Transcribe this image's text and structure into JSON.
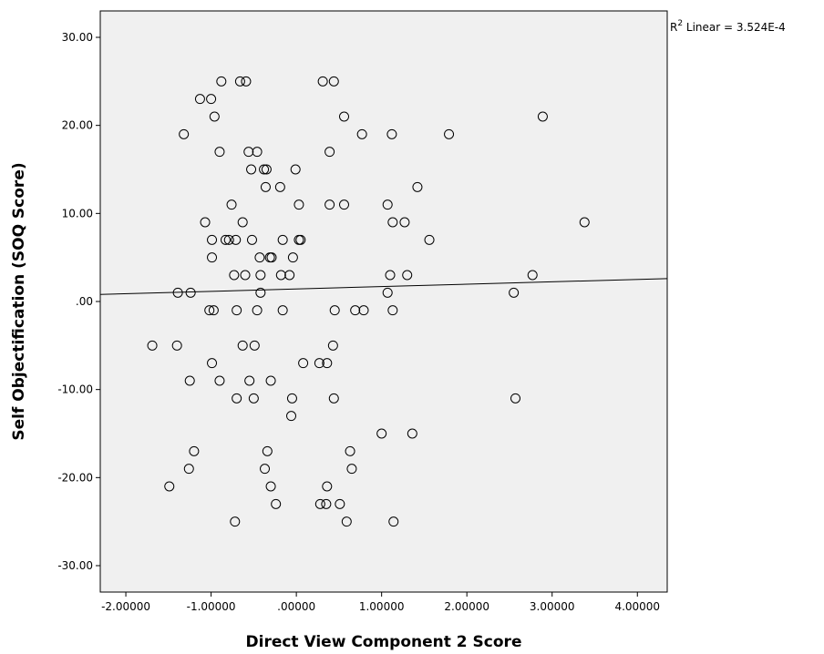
{
  "chart_data": {
    "type": "scatter",
    "title": "",
    "xlabel": "Direct View Component 2 Score",
    "ylabel": "Self Objectification (SOQ Score)",
    "xlim": [
      -2.3,
      4.35
    ],
    "ylim": [
      -33,
      33
    ],
    "xticks": [
      -2,
      -1,
      0,
      1,
      2,
      3,
      4
    ],
    "xtick_labels": [
      "-2.00000",
      "-1.00000",
      ".00000",
      "1.00000",
      "2.00000",
      "3.00000",
      "4.00000"
    ],
    "yticks": [
      30,
      20,
      10,
      0,
      -10,
      -20,
      -30
    ],
    "ytick_labels": [
      "30.00",
      "20.00",
      "10.00",
      ".00",
      "-10.00",
      "-20.00",
      "-30.00"
    ],
    "grid": false,
    "background": "#f0f0f0",
    "fit_line": {
      "label_prefix": "R",
      "label_sup": "2",
      "label_suffix": " Linear = 3.524E-4",
      "x": [
        -2.3,
        4.35
      ],
      "y": [
        0.8,
        2.6
      ]
    },
    "points": [
      {
        "x": -0.88,
        "y": 25
      },
      {
        "x": -0.66,
        "y": 25
      },
      {
        "x": -0.59,
        "y": 25
      },
      {
        "x": 0.31,
        "y": 25
      },
      {
        "x": 0.44,
        "y": 25
      },
      {
        "x": -1.13,
        "y": 23
      },
      {
        "x": -1.0,
        "y": 23
      },
      {
        "x": -0.96,
        "y": 21
      },
      {
        "x": 0.56,
        "y": 21
      },
      {
        "x": 2.89,
        "y": 21
      },
      {
        "x": -1.32,
        "y": 19
      },
      {
        "x": 0.77,
        "y": 19
      },
      {
        "x": 1.12,
        "y": 19
      },
      {
        "x": 1.79,
        "y": 19
      },
      {
        "x": -0.9,
        "y": 17
      },
      {
        "x": -0.56,
        "y": 17
      },
      {
        "x": -0.46,
        "y": 17
      },
      {
        "x": 0.39,
        "y": 17
      },
      {
        "x": -0.53,
        "y": 15
      },
      {
        "x": -0.38,
        "y": 15
      },
      {
        "x": -0.35,
        "y": 15
      },
      {
        "x": -0.01,
        "y": 15
      },
      {
        "x": -0.36,
        "y": 13
      },
      {
        "x": -0.19,
        "y": 13
      },
      {
        "x": 1.42,
        "y": 13
      },
      {
        "x": -0.76,
        "y": 11
      },
      {
        "x": 0.03,
        "y": 11
      },
      {
        "x": 0.39,
        "y": 11
      },
      {
        "x": 0.56,
        "y": 11
      },
      {
        "x": 1.07,
        "y": 11
      },
      {
        "x": -1.07,
        "y": 9
      },
      {
        "x": -0.63,
        "y": 9
      },
      {
        "x": 1.13,
        "y": 9
      },
      {
        "x": 1.27,
        "y": 9
      },
      {
        "x": 3.38,
        "y": 9
      },
      {
        "x": -0.99,
        "y": 7
      },
      {
        "x": -0.83,
        "y": 7
      },
      {
        "x": -0.79,
        "y": 7
      },
      {
        "x": -0.71,
        "y": 7
      },
      {
        "x": -0.52,
        "y": 7
      },
      {
        "x": -0.16,
        "y": 7
      },
      {
        "x": 0.03,
        "y": 7
      },
      {
        "x": 0.05,
        "y": 7
      },
      {
        "x": 1.56,
        "y": 7
      },
      {
        "x": -0.99,
        "y": 5
      },
      {
        "x": -0.43,
        "y": 5
      },
      {
        "x": -0.31,
        "y": 5
      },
      {
        "x": -0.29,
        "y": 5
      },
      {
        "x": -0.04,
        "y": 5
      },
      {
        "x": -0.73,
        "y": 3
      },
      {
        "x": -0.6,
        "y": 3
      },
      {
        "x": -0.42,
        "y": 3
      },
      {
        "x": -0.18,
        "y": 3
      },
      {
        "x": -0.08,
        "y": 3
      },
      {
        "x": 1.1,
        "y": 3
      },
      {
        "x": 1.3,
        "y": 3
      },
      {
        "x": 2.77,
        "y": 3
      },
      {
        "x": -1.39,
        "y": 1
      },
      {
        "x": -1.24,
        "y": 1
      },
      {
        "x": -0.42,
        "y": 1
      },
      {
        "x": 1.07,
        "y": 1
      },
      {
        "x": 2.55,
        "y": 1
      },
      {
        "x": -1.02,
        "y": -1
      },
      {
        "x": -0.97,
        "y": -1
      },
      {
        "x": -0.7,
        "y": -1
      },
      {
        "x": -0.46,
        "y": -1
      },
      {
        "x": -0.16,
        "y": -1
      },
      {
        "x": 0.45,
        "y": -1
      },
      {
        "x": 0.69,
        "y": -1
      },
      {
        "x": 0.79,
        "y": -1
      },
      {
        "x": 1.13,
        "y": -1
      },
      {
        "x": -1.69,
        "y": -5
      },
      {
        "x": -1.4,
        "y": -5
      },
      {
        "x": -0.63,
        "y": -5
      },
      {
        "x": -0.49,
        "y": -5
      },
      {
        "x": 0.43,
        "y": -5
      },
      {
        "x": -0.99,
        "y": -7
      },
      {
        "x": 0.08,
        "y": -7
      },
      {
        "x": 0.27,
        "y": -7
      },
      {
        "x": 0.36,
        "y": -7
      },
      {
        "x": -1.25,
        "y": -9
      },
      {
        "x": -0.9,
        "y": -9
      },
      {
        "x": -0.55,
        "y": -9
      },
      {
        "x": -0.3,
        "y": -9
      },
      {
        "x": -0.7,
        "y": -11
      },
      {
        "x": -0.5,
        "y": -11
      },
      {
        "x": -0.05,
        "y": -11
      },
      {
        "x": 0.44,
        "y": -11
      },
      {
        "x": 2.57,
        "y": -11
      },
      {
        "x": -0.06,
        "y": -13
      },
      {
        "x": 1.0,
        "y": -15
      },
      {
        "x": 1.36,
        "y": -15
      },
      {
        "x": -1.2,
        "y": -17
      },
      {
        "x": -0.34,
        "y": -17
      },
      {
        "x": 0.63,
        "y": -17
      },
      {
        "x": -1.26,
        "y": -19
      },
      {
        "x": -0.37,
        "y": -19
      },
      {
        "x": 0.65,
        "y": -19
      },
      {
        "x": -1.49,
        "y": -21
      },
      {
        "x": -0.3,
        "y": -21
      },
      {
        "x": 0.36,
        "y": -21
      },
      {
        "x": -0.24,
        "y": -23
      },
      {
        "x": 0.28,
        "y": -23
      },
      {
        "x": 0.35,
        "y": -23
      },
      {
        "x": 0.51,
        "y": -23
      },
      {
        "x": -0.72,
        "y": -25
      },
      {
        "x": 0.59,
        "y": -25
      },
      {
        "x": 1.14,
        "y": -25
      }
    ]
  }
}
